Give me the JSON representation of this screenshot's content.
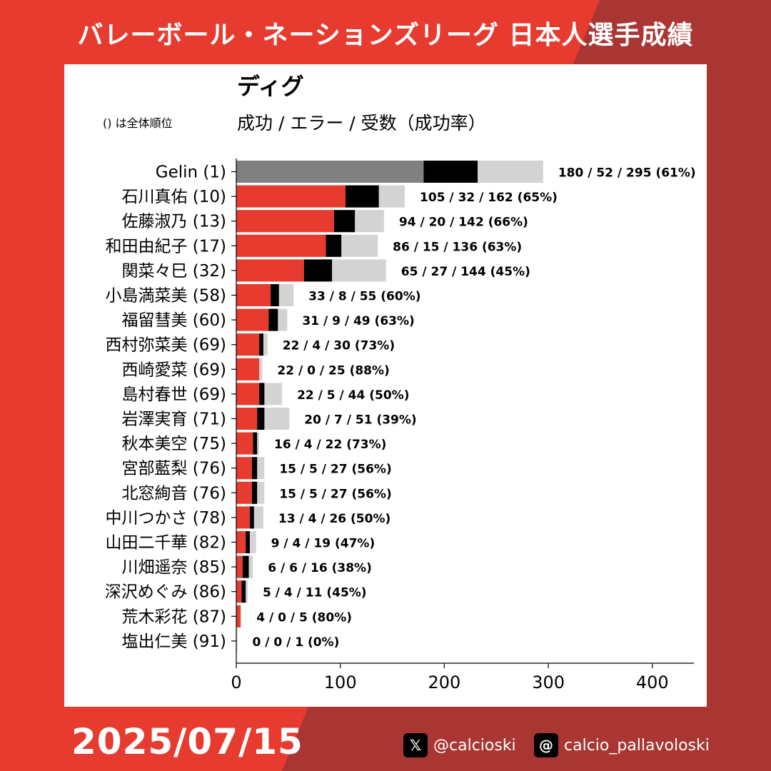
{
  "header": {
    "title": "バレーボール・ネーションズリーグ 日本人選手成績"
  },
  "footer": {
    "date": "2025/07/15",
    "x_handle": "@calcioski",
    "threads_handle": "calcio_pallavoloski",
    "x_icon": "x-logo-icon",
    "threads_icon": "threads-logo-icon"
  },
  "colors": {
    "background": "#e63b2e",
    "background_dark": "#a93633",
    "success_player": "#e63b2e",
    "success_top": "#808080",
    "error": "#000000",
    "attempts": "#d3d3d3"
  },
  "chart_data": {
    "type": "bar",
    "orientation": "horizontal",
    "stacked": true,
    "title": "ディグ",
    "subtitle": "成功 / エラー / 受数（成功率）",
    "note": "() は全体順位",
    "xlim": [
      0,
      440
    ],
    "xticks": [
      0,
      100,
      200,
      300,
      400
    ],
    "grid": false,
    "series_order": [
      "成功",
      "エラー",
      "受数"
    ],
    "players": [
      {
        "name": "Gelin (1)",
        "success": 180,
        "error": 52,
        "attempts": 295,
        "label": "180 / 52 / 295 (61%)",
        "highlight": true
      },
      {
        "name": "石川真佑 (10)",
        "success": 105,
        "error": 32,
        "attempts": 162,
        "label": "105 / 32 / 162 (65%)"
      },
      {
        "name": "佐藤淑乃 (13)",
        "success": 94,
        "error": 20,
        "attempts": 142,
        "label": "94 / 20 / 142 (66%)"
      },
      {
        "name": "和田由紀子 (17)",
        "success": 86,
        "error": 15,
        "attempts": 136,
        "label": "86 / 15 / 136 (63%)"
      },
      {
        "name": "関菜々巳 (32)",
        "success": 65,
        "error": 27,
        "attempts": 144,
        "label": "65 / 27 / 144 (45%)"
      },
      {
        "name": "小島満菜美 (58)",
        "success": 33,
        "error": 8,
        "attempts": 55,
        "label": "33 / 8 / 55 (60%)"
      },
      {
        "name": "福留彗美 (60)",
        "success": 31,
        "error": 9,
        "attempts": 49,
        "label": "31 / 9 / 49 (63%)"
      },
      {
        "name": "西村弥菜美 (69)",
        "success": 22,
        "error": 4,
        "attempts": 30,
        "label": "22 / 4 / 30 (73%)"
      },
      {
        "name": "西崎愛菜 (69)",
        "success": 22,
        "error": 0,
        "attempts": 25,
        "label": "22 / 0 / 25 (88%)"
      },
      {
        "name": "島村春世 (69)",
        "success": 22,
        "error": 5,
        "attempts": 44,
        "label": "22 / 5 / 44 (50%)"
      },
      {
        "name": "岩澤実育 (71)",
        "success": 20,
        "error": 7,
        "attempts": 51,
        "label": "20 / 7 / 51 (39%)"
      },
      {
        "name": "秋本美空 (75)",
        "success": 16,
        "error": 4,
        "attempts": 22,
        "label": "16 / 4 / 22 (73%)"
      },
      {
        "name": "宮部藍梨 (76)",
        "success": 15,
        "error": 5,
        "attempts": 27,
        "label": "15 / 5 / 27 (56%)"
      },
      {
        "name": "北窓絢音 (76)",
        "success": 15,
        "error": 5,
        "attempts": 27,
        "label": "15 / 5 / 27 (56%)"
      },
      {
        "name": "中川つかさ (78)",
        "success": 13,
        "error": 4,
        "attempts": 26,
        "label": "13 / 4 / 26 (50%)"
      },
      {
        "name": "山田二千華 (82)",
        "success": 9,
        "error": 4,
        "attempts": 19,
        "label": "9 / 4 / 19 (47%)"
      },
      {
        "name": "川畑遥奈 (85)",
        "success": 6,
        "error": 6,
        "attempts": 16,
        "label": "6 / 6 / 16 (38%)"
      },
      {
        "name": "深沢めぐみ (86)",
        "success": 5,
        "error": 4,
        "attempts": 11,
        "label": "5 / 4 / 11 (45%)"
      },
      {
        "name": "荒木彩花 (87)",
        "success": 4,
        "error": 0,
        "attempts": 5,
        "label": "4 / 0 / 5 (80%)"
      },
      {
        "name": "塩出仁美 (91)",
        "success": 0,
        "error": 0,
        "attempts": 1,
        "label": "0 / 0 / 1 (0%)"
      }
    ]
  }
}
